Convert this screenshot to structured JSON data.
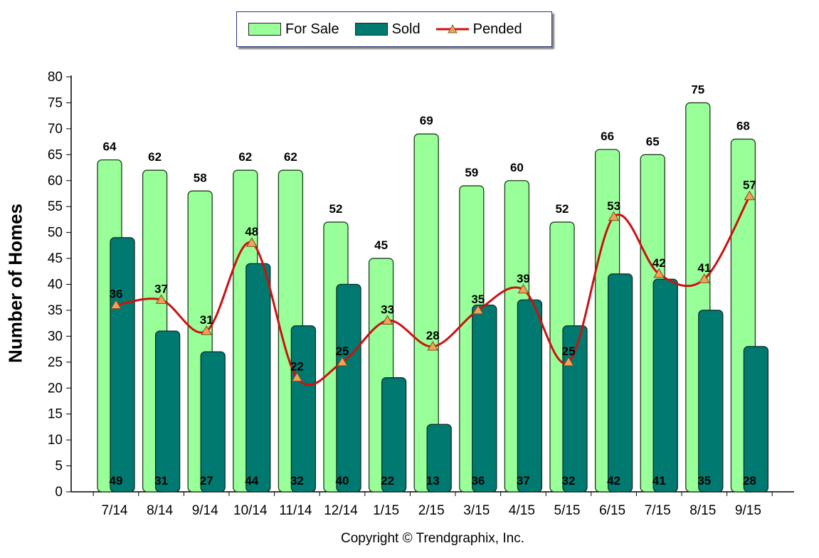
{
  "chart_data": {
    "type": "bar",
    "title": "",
    "xlabel": "",
    "ylabel": "Number of Homes",
    "ylim": [
      0,
      80
    ],
    "yticks": [
      0,
      5,
      10,
      15,
      20,
      25,
      30,
      35,
      40,
      45,
      50,
      55,
      60,
      65,
      70,
      75,
      80
    ],
    "grid": false,
    "legend_position": "top-center",
    "categories": [
      "7/14",
      "8/14",
      "9/14",
      "10/14",
      "11/14",
      "12/14",
      "1/15",
      "2/15",
      "3/15",
      "4/15",
      "5/15",
      "6/15",
      "7/15",
      "8/15",
      "9/15"
    ],
    "series": [
      {
        "name": "For Sale",
        "type": "bar",
        "color": "#99ff99",
        "values": [
          64,
          62,
          58,
          62,
          62,
          52,
          45,
          69,
          59,
          60,
          52,
          66,
          65,
          75,
          68
        ]
      },
      {
        "name": "Sold",
        "type": "bar",
        "color": "#007a70",
        "values": [
          49,
          31,
          27,
          44,
          32,
          40,
          22,
          13,
          36,
          37,
          32,
          42,
          41,
          35,
          28
        ]
      },
      {
        "name": "Pended",
        "type": "line",
        "color": "#cc1111",
        "marker": "triangle",
        "marker_color": "#f4a15a",
        "values": [
          36,
          37,
          31,
          48,
          22,
          25,
          33,
          28,
          35,
          39,
          25,
          53,
          42,
          41,
          57
        ]
      }
    ]
  },
  "legend": {
    "for_sale": "For Sale",
    "sold": "Sold",
    "pended": "Pended"
  },
  "copyright": "Copyright © Trendgraphix, Inc."
}
